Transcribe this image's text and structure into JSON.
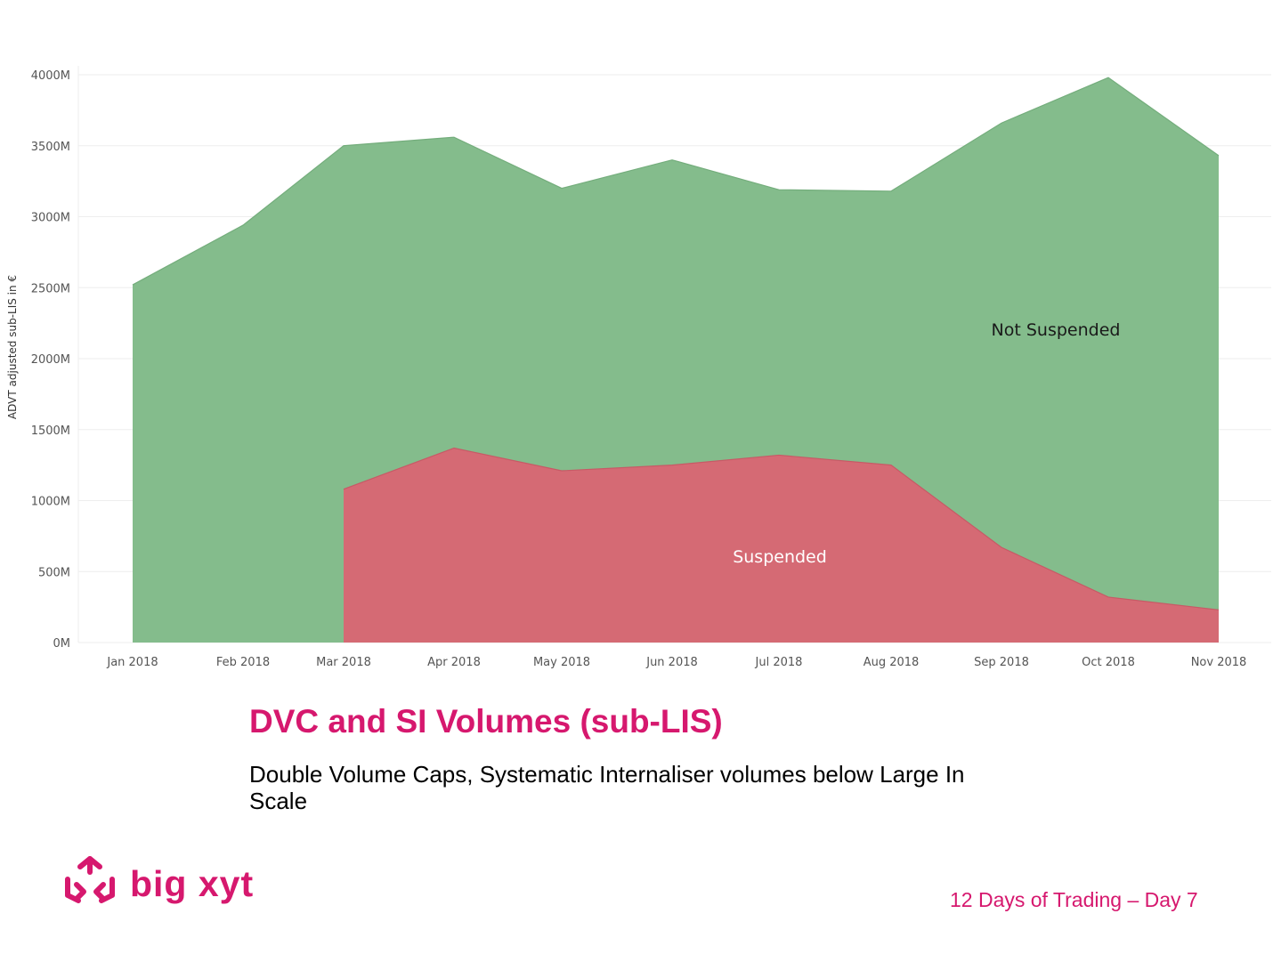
{
  "chart_data": {
    "type": "area",
    "stacked": false,
    "categories": [
      "Jan 2018",
      "Feb 2018",
      "Mar 2018",
      "Apr 2018",
      "May 2018",
      "Jun 2018",
      "Jul 2018",
      "Aug 2018",
      "Sep 2018",
      "Oct 2018",
      "Nov 2018"
    ],
    "ylabel": "ADVT adjusted sub-LIS in €",
    "xlabel": "",
    "ylim": [
      0,
      4000
    ],
    "yticks": [
      0,
      500,
      1000,
      1500,
      2000,
      2500,
      3000,
      3500,
      4000
    ],
    "ytick_labels": [
      "0M",
      "500M",
      "1000M",
      "1500M",
      "2000M",
      "2500M",
      "3000M",
      "3500M",
      "4000M"
    ],
    "grid": true,
    "series": [
      {
        "name": "Not Suspended",
        "color": "#84bc8c",
        "values": [
          2520,
          2940,
          3500,
          3560,
          3200,
          3400,
          3190,
          3180,
          3660,
          3980,
          3430
        ]
      },
      {
        "name": "Suspended",
        "color": "#d56a74",
        "values": [
          null,
          null,
          1080,
          1370,
          1210,
          1250,
          1320,
          1250,
          670,
          320,
          230
        ]
      }
    ]
  },
  "title": "DVC and SI Volumes (sub-LIS)",
  "subtitle": "Double Volume Caps, Systematic Internaliser volumes below Large In Scale",
  "footer": "12 Days of Trading – Day 7",
  "logo": {
    "text": "big xyt",
    "icon": "big-xyt-logo-icon",
    "color": "#d6186e"
  }
}
